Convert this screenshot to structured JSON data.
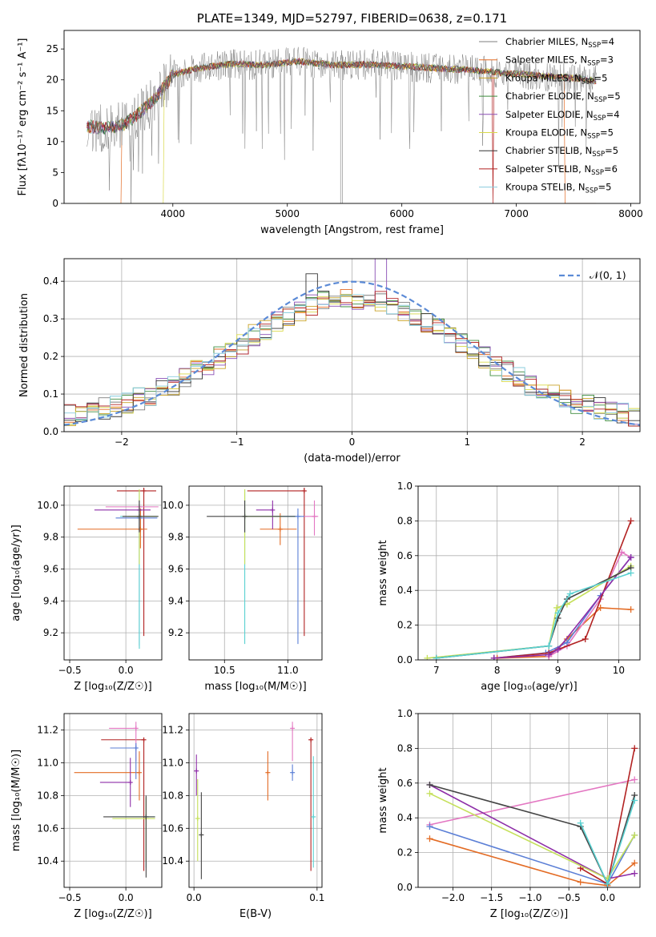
{
  "colors": {
    "Chabrier MILES": "#7f7f7f",
    "Salpeter MILES": "#e36b24",
    "Kroupa MILES": "#c9a227",
    "Chabrier ELODIE": "#3d8c3d",
    "Salpeter ELODIE": "#8a4fb5",
    "Kroupa ELODIE": "#d9d94a",
    "Chabrier STELIB": "#333333",
    "Salpeter STELIB": "#b22222",
    "Kroupa STELIB": "#88ccdd",
    "mw": [
      "#e36b24",
      "#e377c2",
      "#5b7fd6",
      "#b22222",
      "#8e2ea8",
      "#c5e05a",
      "#444444",
      "#5ad1d1",
      "#88ccdd"
    ]
  },
  "chart_data": [
    {
      "type": "line",
      "title": "PLATE=1349, MJD=52797, FIBERID=0638, z=0.171",
      "xlabel": "wavelength [Angstrom, rest frame]",
      "ylabel": "Flux [fλ10⁻¹⁷ erg cm⁻² s⁻¹ A⁻¹]",
      "xlim": [
        3050,
        8080
      ],
      "ylim": [
        0,
        28
      ],
      "xticks": [
        "4000",
        "5000",
        "6000",
        "7000",
        "8000"
      ],
      "xtickvals": [
        4000,
        5000,
        6000,
        7000,
        8000
      ],
      "yticks": [
        "0",
        "5",
        "10",
        "15",
        "20",
        "25"
      ],
      "ytickvals": [
        0,
        5,
        10,
        15,
        20,
        25
      ],
      "legend_position": "right",
      "legend": [
        {
          "label": "Chabrier MILES, N",
          "sub": "SSP",
          "tail": "=4"
        },
        {
          "label": "Salpeter MILES, N",
          "sub": "SSP",
          "tail": "=3"
        },
        {
          "label": "Kroupa MILES, N",
          "sub": "SSP",
          "tail": "=5"
        },
        {
          "label": "Chabrier ELODIE, N",
          "sub": "SSP",
          "tail": "=5"
        },
        {
          "label": "Salpeter ELODIE, N",
          "sub": "SSP",
          "tail": "=4"
        },
        {
          "label": "Kroupa ELODIE, N",
          "sub": "SSP",
          "tail": "=5"
        },
        {
          "label": "Chabrier STELIB, N",
          "sub": "SSP",
          "tail": "=5"
        },
        {
          "label": "Salpeter STELIB, N",
          "sub": "SSP",
          "tail": "=6"
        },
        {
          "label": "Kroupa STELIB, N",
          "sub": "SSP",
          "tail": "=5"
        }
      ],
      "spectrum_envelope": {
        "x": [
          3250,
          3400,
          3550,
          3700,
          3850,
          4000,
          4200,
          4500,
          4800,
          5100,
          5400,
          5700,
          6000,
          6300,
          6600,
          6900,
          7200,
          7500,
          7700
        ],
        "y": [
          12.5,
          12.2,
          12.5,
          14.5,
          17.0,
          20.8,
          21.8,
          22.6,
          22.4,
          23.0,
          22.4,
          22.5,
          22.2,
          21.9,
          21.6,
          21.1,
          20.7,
          20.3,
          19.8
        ]
      }
    },
    {
      "type": "line",
      "xlabel": "(data-model)/error",
      "ylabel": "Normed distribution",
      "xlim": [
        -2.5,
        2.5
      ],
      "ylim": [
        0,
        0.46
      ],
      "xticks": [
        "−2",
        "−1",
        "0",
        "1",
        "2"
      ],
      "xtickvals": [
        -2,
        -1,
        0,
        1,
        2
      ],
      "yticks": [
        "0.0",
        "0.1",
        "0.2",
        "0.3",
        "0.4"
      ],
      "ytickvals": [
        0,
        0.1,
        0.2,
        0.3,
        0.4
      ],
      "legend": [
        "𝒩(0, 1)"
      ],
      "gaussian": {
        "mu": 0,
        "sigma": 1
      },
      "histogram_bins": {
        "start": -2.5,
        "width": 0.1
      }
    },
    {
      "type": "scatter",
      "xlabel": "Z [log₁₀(Z/Z☉)]",
      "ylabel": "age [log₁₀(age/yr)]",
      "xlim": [
        -0.55,
        0.32
      ],
      "ylim": [
        9.03,
        10.12
      ],
      "xticks": [
        "−0.5",
        "0.0",
        "0.5"
      ],
      "xtickvals": [
        -0.5,
        0.0,
        0.5
      ],
      "yticks": [
        "9.2",
        "9.4",
        "9.6",
        "9.8",
        "10.0"
      ],
      "ytickvals": [
        9.2,
        9.4,
        9.6,
        9.8,
        10.0
      ],
      "points": [
        {
          "x": 0.16,
          "y": 10.09,
          "xerr": [
            0.24,
            0.11
          ],
          "yerr": [
            0.91,
            0.02
          ],
          "c": 3
        },
        {
          "x": 0.13,
          "y": 9.85,
          "xerr": [
            0.56,
            0.06
          ],
          "yerr": [
            0.12,
            0.13
          ],
          "c": 0
        },
        {
          "x": 0.12,
          "y": 9.99,
          "xerr": [
            0.3,
            0.17
          ],
          "yerr": [
            0.2,
            0.05
          ],
          "c": 1
        },
        {
          "x": 0.12,
          "y": 9.92,
          "xerr": [
            0.21,
            0.16
          ],
          "yerr": [
            0.8,
            0.05
          ],
          "c": 2
        },
        {
          "x": 0.12,
          "y": 9.97,
          "xerr": [
            0.4,
            0.1
          ],
          "yerr": [
            0.12,
            0.06
          ],
          "c": 4
        },
        {
          "x": 0.12,
          "y": 9.93,
          "xerr": [
            0.17,
            0.16
          ],
          "yerr": [
            0.83,
            0.17
          ],
          "c": 7
        },
        {
          "x": 0.12,
          "y": 9.93,
          "xerr": [
            0.1,
            0.16
          ],
          "yerr": [
            0.3,
            0.17
          ],
          "c": 5
        },
        {
          "x": 0.12,
          "y": 9.93,
          "xerr": [
            0.15,
            0.17
          ],
          "yerr": [
            0.1,
            0.1
          ],
          "c": 6
        }
      ]
    },
    {
      "type": "scatter",
      "xlabel": "mass [log₁₀(M/M☉)]",
      "xlim": [
        10.22,
        11.27
      ],
      "ylim": [
        9.03,
        10.12
      ],
      "xticks": [
        "10.5",
        "11.0"
      ],
      "xtickvals": [
        10.5,
        11.0
      ],
      "yticks": [
        "9.2",
        "9.4",
        "9.6",
        "9.8",
        "10.0"
      ],
      "ytickvals": [
        9.2,
        9.4,
        9.6,
        9.8,
        10.0
      ],
      "points": [
        {
          "x": 11.13,
          "y": 10.09,
          "xerr": [
            0.45,
            0.0
          ],
          "yerr": [
            0.91,
            0.02
          ],
          "c": 3
        },
        {
          "x": 10.94,
          "y": 9.85,
          "xerr": [
            0.16,
            0.13
          ],
          "yerr": [
            0.1,
            0.1
          ],
          "c": 0
        },
        {
          "x": 11.21,
          "y": 9.93,
          "xerr": [
            0.08,
            0.03
          ],
          "yerr": [
            0.12,
            0.1
          ],
          "c": 1
        },
        {
          "x": 11.08,
          "y": 9.93,
          "xerr": [
            0.2,
            0.05
          ],
          "yerr": [
            0.8,
            0.05
          ],
          "c": 2
        },
        {
          "x": 10.88,
          "y": 9.97,
          "xerr": [
            0.13,
            0.0
          ],
          "yerr": [
            0.12,
            0.06
          ],
          "c": 4
        },
        {
          "x": 10.66,
          "y": 9.93,
          "xerr": [
            0.0,
            0.4
          ],
          "yerr": [
            0.8,
            0.17
          ],
          "c": 7
        },
        {
          "x": 10.66,
          "y": 9.93,
          "xerr": [
            0.0,
            0.3
          ],
          "yerr": [
            0.3,
            0.17
          ],
          "c": 5
        },
        {
          "x": 10.66,
          "y": 9.93,
          "xerr": [
            0.3,
            0.4
          ],
          "yerr": [
            0.1,
            0.1
          ],
          "c": 6
        }
      ]
    },
    {
      "type": "line",
      "xlabel": "age [log₁₀(age/yr)]",
      "ylabel": "mass weight",
      "xlim": [
        6.7,
        10.35
      ],
      "ylim": [
        0,
        1.0
      ],
      "xticks": [
        "7",
        "8",
        "9",
        "10"
      ],
      "xtickvals": [
        7,
        8,
        9,
        10
      ],
      "yticks": [
        "0.0",
        "0.2",
        "0.4",
        "0.6",
        "0.8",
        "1.0"
      ],
      "ytickvals": [
        0,
        0.2,
        0.4,
        0.6,
        0.8,
        1.0
      ],
      "series": [
        {
          "x": [
            8.0,
            8.85,
            9.15,
            9.7,
            10.2
          ],
          "y": [
            0.01,
            0.02,
            0.12,
            0.3,
            0.29
          ],
          "c": 0
        },
        {
          "x": [
            8.85,
            9.15,
            9.7,
            10.05,
            10.2
          ],
          "y": [
            0.02,
            0.08,
            0.35,
            0.62,
            0.59
          ],
          "c": 1
        },
        {
          "x": [
            7.95,
            8.8,
            9.15,
            9.7,
            10.2
          ],
          "y": [
            0.01,
            0.04,
            0.1,
            0.37,
            0.59
          ],
          "c": 2
        },
        {
          "x": [
            7.95,
            8.85,
            9.45,
            10.2
          ],
          "y": [
            0.01,
            0.04,
            0.12,
            0.8
          ],
          "c": 3
        },
        {
          "x": [
            7.95,
            8.85,
            9.0,
            10.2
          ],
          "y": [
            0.01,
            0.03,
            0.06,
            0.59
          ],
          "c": 4
        },
        {
          "x": [
            6.85,
            8.85,
            8.98,
            9.15,
            10.2
          ],
          "y": [
            0.01,
            0.08,
            0.3,
            0.32,
            0.54
          ],
          "c": 5
        },
        {
          "x": [
            7.0,
            8.85,
            9.0,
            9.15,
            10.2
          ],
          "y": [
            0.01,
            0.08,
            0.24,
            0.35,
            0.53
          ],
          "c": 6
        },
        {
          "x": [
            7.0,
            8.85,
            9.0,
            9.2,
            10.2
          ],
          "y": [
            0.01,
            0.08,
            0.27,
            0.38,
            0.5
          ],
          "c": 7
        }
      ]
    },
    {
      "type": "scatter",
      "xlabel": "Z [log₁₀(Z/Z☉)]",
      "ylabel": "mass [log₁₀(M/M☉)]",
      "xlim": [
        -0.55,
        0.32
      ],
      "ylim": [
        10.24,
        11.3
      ],
      "xticks": [
        "−0.5",
        "0.0",
        "0.5"
      ],
      "xtickvals": [
        -0.5,
        0.0,
        0.5
      ],
      "yticks": [
        "10.4",
        "10.6",
        "10.8",
        "11.0",
        "11.2"
      ],
      "ytickvals": [
        10.4,
        10.6,
        10.8,
        11.0,
        11.2
      ],
      "points": [
        {
          "x": 0.16,
          "y": 11.14,
          "xerr": [
            0.38,
            0.0
          ],
          "yerr": [
            0.8,
            0.0
          ],
          "c": 3
        },
        {
          "x": 0.09,
          "y": 11.21,
          "xerr": [
            0.24,
            0.0
          ],
          "yerr": [
            0.2,
            0.04
          ],
          "c": 1
        },
        {
          "x": 0.12,
          "y": 10.94,
          "xerr": [
            0.58,
            0.0
          ],
          "yerr": [
            0.17,
            0.13
          ],
          "c": 0
        },
        {
          "x": 0.09,
          "y": 11.09,
          "xerr": [
            0.23,
            0.0
          ],
          "yerr": [
            0.19,
            0.03
          ],
          "c": 2
        },
        {
          "x": 0.04,
          "y": 10.88,
          "xerr": [
            0.27,
            0.0
          ],
          "yerr": [
            0.15,
            0.15
          ],
          "c": 4
        },
        {
          "x": 0.18,
          "y": 10.67,
          "xerr": [
            0.3,
            0.08
          ],
          "yerr": [
            0.31,
            0.12
          ],
          "c": 7
        },
        {
          "x": 0.18,
          "y": 10.66,
          "xerr": [
            0.3,
            0.08
          ],
          "yerr": [
            0.26,
            0.13
          ],
          "c": 5
        },
        {
          "x": 0.18,
          "y": 10.67,
          "xerr": [
            0.38,
            0.08
          ],
          "yerr": [
            0.37,
            0.13
          ],
          "c": 6
        }
      ]
    },
    {
      "type": "scatter",
      "xlabel": "E(B-V)",
      "xlim": [
        -0.004,
        0.104
      ],
      "ylim": [
        10.24,
        11.3
      ],
      "xticks": [
        "0.0",
        "0.1"
      ],
      "xtickvals": [
        0.0,
        0.1
      ],
      "yticks": [
        "10.4",
        "10.6",
        "10.8",
        "11.0",
        "11.2"
      ],
      "ytickvals": [
        10.4,
        10.6,
        10.8,
        11.0,
        11.2
      ],
      "points": [
        {
          "x": 0.095,
          "y": 11.14,
          "yerr": [
            0.8,
            0.0
          ],
          "c": 3
        },
        {
          "x": 0.08,
          "y": 11.21,
          "yerr": [
            0.2,
            0.04
          ],
          "c": 1
        },
        {
          "x": 0.06,
          "y": 10.94,
          "yerr": [
            0.17,
            0.13
          ],
          "c": 0
        },
        {
          "x": 0.08,
          "y": 10.94,
          "yerr": [
            0.05,
            0.05
          ],
          "c": 2
        },
        {
          "x": 0.002,
          "y": 10.95,
          "yerr": [
            0.15,
            0.1
          ],
          "c": 4
        },
        {
          "x": 0.097,
          "y": 10.67,
          "yerr": [
            0.31,
            0.37
          ],
          "c": 7
        },
        {
          "x": 0.003,
          "y": 10.66,
          "yerr": [
            0.26,
            0.24
          ],
          "c": 5
        },
        {
          "x": 0.006,
          "y": 10.56,
          "yerr": [
            0.27,
            0.26
          ],
          "c": 6
        }
      ]
    },
    {
      "type": "line",
      "xlabel": "Z [log₁₀(Z/Z☉)]",
      "ylabel": "mass weight",
      "xlim": [
        -2.45,
        0.42
      ],
      "ylim": [
        0,
        1.0
      ],
      "xticks": [
        "−2.0",
        "−1.5",
        "−1.0",
        "−0.5",
        "0.0"
      ],
      "xtickvals": [
        -2.0,
        -1.5,
        -1.0,
        -0.5,
        0.0
      ],
      "yticks": [
        "0.0",
        "0.2",
        "0.4",
        "0.6",
        "0.8",
        "1.0"
      ],
      "ytickvals": [
        0,
        0.2,
        0.4,
        0.6,
        0.8,
        1.0
      ],
      "series": [
        {
          "x": [
            -2.3,
            -0.35,
            0.0,
            0.35
          ],
          "y": [
            0.28,
            0.03,
            0.01,
            0.14
          ],
          "c": 0
        },
        {
          "x": [
            -2.3,
            0.35
          ],
          "y": [
            0.36,
            0.62
          ],
          "c": 1
        },
        {
          "x": [
            -2.3,
            0.0,
            0.35
          ],
          "y": [
            0.35,
            0.02,
            0.3
          ],
          "c": 2
        },
        {
          "x": [
            -0.35,
            0.0,
            0.35
          ],
          "y": [
            0.11,
            0.02,
            0.8
          ],
          "c": 3
        },
        {
          "x": [
            -2.3,
            0.0,
            0.35
          ],
          "y": [
            0.59,
            0.05,
            0.08
          ],
          "c": 4
        },
        {
          "x": [
            -2.3,
            0.0,
            0.35
          ],
          "y": [
            0.54,
            0.05,
            0.3
          ],
          "c": 5
        },
        {
          "x": [
            -2.3,
            -0.35,
            0.0,
            0.35
          ],
          "y": [
            0.59,
            0.35,
            0.02,
            0.53
          ],
          "c": 6
        },
        {
          "x": [
            -0.35,
            0.0,
            0.35
          ],
          "y": [
            0.37,
            0.02,
            0.5
          ],
          "c": 7
        }
      ]
    }
  ]
}
